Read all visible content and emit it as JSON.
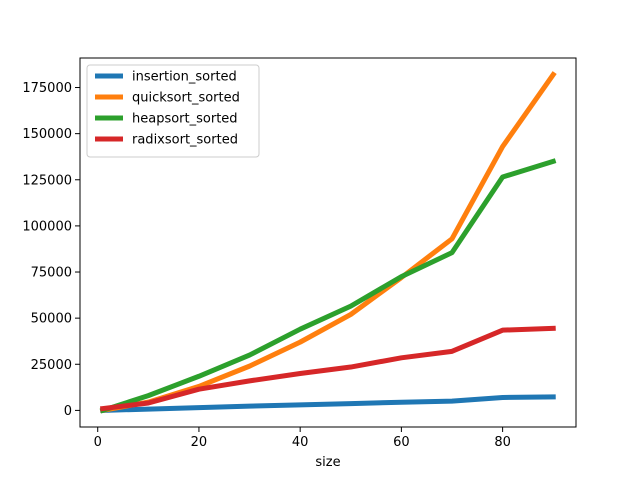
{
  "chart_data": {
    "type": "line",
    "title": "",
    "xlabel": "size",
    "ylabel": "",
    "xlim": [
      -3.5,
      94.5
    ],
    "ylim": [
      -9000,
      191000
    ],
    "xticks": [
      0,
      20,
      40,
      60,
      80
    ],
    "yticks": [
      0,
      25000,
      50000,
      75000,
      100000,
      125000,
      150000,
      175000
    ],
    "grid": false,
    "legend_position": "top-left",
    "series": [
      {
        "name": "insertion_sorted",
        "color": "#1f77b4",
        "points": [
          [
            1,
            0
          ],
          [
            10,
            700
          ],
          [
            20,
            1500
          ],
          [
            30,
            2300
          ],
          [
            40,
            3000
          ],
          [
            50,
            3700
          ],
          [
            60,
            4400
          ],
          [
            70,
            5000
          ],
          [
            80,
            7000
          ],
          [
            90,
            7300
          ]
        ]
      },
      {
        "name": "quicksort_sorted",
        "color": "#ff7f0e",
        "points": [
          [
            1,
            0
          ],
          [
            10,
            4500
          ],
          [
            20,
            13000
          ],
          [
            30,
            24000
          ],
          [
            40,
            37000
          ],
          [
            50,
            52000
          ],
          [
            60,
            72000
          ],
          [
            70,
            93000
          ],
          [
            80,
            143000
          ],
          [
            90,
            182000
          ]
        ]
      },
      {
        "name": "heapsort_sorted",
        "color": "#2ca02c",
        "points": [
          [
            1,
            0
          ],
          [
            10,
            8000
          ],
          [
            20,
            18500
          ],
          [
            30,
            30000
          ],
          [
            40,
            44000
          ],
          [
            50,
            56500
          ],
          [
            60,
            72500
          ],
          [
            70,
            85500
          ],
          [
            80,
            126500
          ],
          [
            90,
            135000
          ]
        ]
      },
      {
        "name": "radixsort_sorted",
        "color": "#d62728",
        "points": [
          [
            1,
            1000
          ],
          [
            10,
            4000
          ],
          [
            20,
            11500
          ],
          [
            30,
            16000
          ],
          [
            40,
            20000
          ],
          [
            50,
            23500
          ],
          [
            60,
            28500
          ],
          [
            70,
            32000
          ],
          [
            80,
            43500
          ],
          [
            90,
            44500
          ]
        ]
      }
    ]
  }
}
